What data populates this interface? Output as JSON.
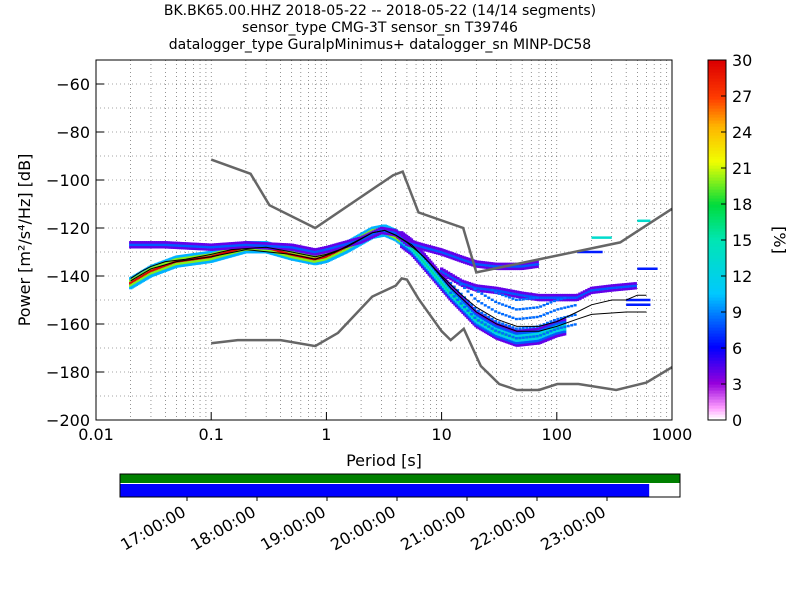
{
  "title": {
    "line1": "BK.BK65.00.HHZ   2018-05-22 -- 2018-05-22  (14/14 segments)",
    "line2": "sensor_type CMG-3T sensor_sn T39746",
    "line3": "datalogger_type GuralpMinimus+ datalogger_sn MINP-DC58"
  },
  "chart_data": {
    "type": "heatmap",
    "x_scale": "log",
    "xlabel": "Period [s]",
    "ylabel": "Power [m²/s⁴/Hz] [dB]",
    "xlim": [
      0.01,
      1000
    ],
    "ylim": [
      -200,
      -50
    ],
    "x_ticks": [
      "0.01",
      "0.1",
      "1",
      "10",
      "100",
      "1000"
    ],
    "y_ticks": [
      "−60",
      "−80",
      "−100",
      "−120",
      "−140",
      "−160",
      "−180",
      "−200"
    ],
    "grid": true,
    "colorbar": {
      "label": "[%]",
      "range": [
        0,
        30
      ],
      "ticks": [
        "0",
        "3",
        "6",
        "9",
        "12",
        "15",
        "18",
        "21",
        "24",
        "27",
        "30"
      ],
      "colormap": "pqlx"
    },
    "noise_models": [
      {
        "name": "high noise model",
        "color": "#666666",
        "points": [
          [
            0.1,
            -91.5
          ],
          [
            0.22,
            -97.4
          ],
          [
            0.32,
            -110.5
          ],
          [
            0.8,
            -120
          ],
          [
            3.8,
            -98
          ],
          [
            4.6,
            -96.5
          ],
          [
            6.3,
            -113.5
          ],
          [
            15.4,
            -120
          ],
          [
            20,
            -138.5
          ],
          [
            354.8,
            -126
          ],
          [
            1000,
            -112
          ]
        ]
      },
      {
        "name": "low noise model",
        "color": "#666666",
        "points": [
          [
            0.1,
            -168
          ],
          [
            0.17,
            -166.7
          ],
          [
            0.4,
            -166.7
          ],
          [
            0.8,
            -169.2
          ],
          [
            1.26,
            -163.7
          ],
          [
            2.5,
            -148.6
          ],
          [
            4.0,
            -144
          ],
          [
            4.5,
            -141
          ],
          [
            5.0,
            -141.5
          ],
          [
            6.3,
            -149.5
          ],
          [
            10,
            -163
          ],
          [
            12,
            -166.7
          ],
          [
            15.6,
            -162
          ],
          [
            21.9,
            -177.5
          ],
          [
            31.6,
            -185
          ],
          [
            45,
            -187.5
          ],
          [
            70,
            -187.5
          ],
          [
            101,
            -185
          ],
          [
            154,
            -185
          ],
          [
            328,
            -187.5
          ],
          [
            600,
            -184.4
          ],
          [
            1000,
            -178
          ]
        ]
      }
    ],
    "mean_curve": {
      "name": "mean",
      "color": "#000000",
      "points": [
        [
          0.02,
          -141
        ],
        [
          0.025,
          -138
        ],
        [
          0.03,
          -136
        ],
        [
          0.04,
          -134
        ],
        [
          0.06,
          -133
        ],
        [
          0.1,
          -131
        ],
        [
          0.15,
          -129
        ],
        [
          0.3,
          -128
        ],
        [
          0.5,
          -130
        ],
        [
          0.8,
          -132
        ],
        [
          1.0,
          -131
        ],
        [
          1.5,
          -128
        ],
        [
          2.5,
          -122
        ],
        [
          3.2,
          -121
        ],
        [
          4.0,
          -123
        ],
        [
          5.0,
          -126
        ],
        [
          7.0,
          -132
        ],
        [
          10,
          -140
        ],
        [
          15,
          -148
        ],
        [
          20,
          -153
        ],
        [
          30,
          -158
        ],
        [
          45,
          -161
        ],
        [
          70,
          -161
        ],
        [
          100,
          -159
        ],
        [
          150,
          -155
        ],
        [
          200,
          -152
        ],
        [
          300,
          -150
        ],
        [
          400,
          -150
        ],
        [
          500,
          -148
        ],
        [
          600,
          -148
        ]
      ]
    },
    "median_curve": {
      "name": "median",
      "color": "#000000",
      "points": [
        [
          0.02,
          -142
        ],
        [
          0.03,
          -137
        ],
        [
          0.05,
          -134
        ],
        [
          0.1,
          -132
        ],
        [
          0.2,
          -129
        ],
        [
          0.5,
          -131
        ],
        [
          0.8,
          -133
        ],
        [
          1.2,
          -130
        ],
        [
          2.5,
          -122
        ],
        [
          3.2,
          -121
        ],
        [
          4.0,
          -123
        ],
        [
          5.5,
          -127
        ],
        [
          8.0,
          -135
        ],
        [
          12,
          -145
        ],
        [
          20,
          -155
        ],
        [
          30,
          -160
        ],
        [
          45,
          -163
        ],
        [
          70,
          -163
        ],
        [
          100,
          -161
        ],
        [
          150,
          -158
        ],
        [
          200,
          -156
        ],
        [
          400,
          -155
        ],
        [
          600,
          -155
        ]
      ]
    },
    "mode_curve": {
      "name": "mode",
      "points": [
        [
          0.02,
          -143
        ],
        [
          0.03,
          -138
        ],
        [
          0.05,
          -134
        ],
        [
          0.1,
          -132
        ],
        [
          0.2,
          -128
        ],
        [
          0.3,
          -128
        ],
        [
          0.5,
          -131
        ],
        [
          0.8,
          -133
        ],
        [
          1.0,
          -132
        ],
        [
          1.5,
          -128
        ],
        [
          2.5,
          -122
        ],
        [
          3.2,
          -121
        ],
        [
          4.0,
          -123
        ],
        [
          5.5,
          -128
        ],
        [
          8.0,
          -137
        ],
        [
          12,
          -147
        ],
        [
          20,
          -158
        ],
        [
          30,
          -163
        ],
        [
          45,
          -166
        ],
        [
          70,
          -165
        ],
        [
          100,
          -162
        ],
        [
          150,
          -160
        ],
        [
          200,
          -159
        ],
        [
          400,
          -158
        ]
      ]
    },
    "upper_branch": {
      "points": [
        [
          0.02,
          -127
        ],
        [
          0.04,
          -127
        ],
        [
          0.1,
          -128
        ],
        [
          0.2,
          -127
        ],
        [
          0.5,
          -128
        ],
        [
          0.8,
          -130
        ],
        [
          1.0,
          -129
        ],
        [
          2.0,
          -125
        ],
        [
          3.0,
          -121
        ],
        [
          4.0,
          -122
        ],
        [
          5.0,
          -126
        ],
        [
          7,
          -128
        ],
        [
          10,
          -130
        ],
        [
          15,
          -133
        ],
        [
          20,
          -135
        ],
        [
          30,
          -136
        ],
        [
          50,
          -136
        ],
        [
          70,
          -135
        ]
      ]
    },
    "lower_branch": {
      "points": [
        [
          10,
          -138
        ],
        [
          15,
          -143
        ],
        [
          20,
          -145
        ],
        [
          30,
          -146
        ],
        [
          50,
          -148
        ],
        [
          70,
          -149
        ],
        [
          100,
          -149
        ],
        [
          150,
          -149
        ],
        [
          200,
          -146
        ],
        [
          300,
          -145
        ],
        [
          500,
          -144
        ]
      ]
    },
    "right_segments": [
      {
        "x": [
          150,
          250
        ],
        "y": -130
      },
      {
        "x": [
          200,
          300
        ],
        "y": -124
      },
      {
        "x": [
          500,
          750
        ],
        "y": -137
      },
      {
        "x": [
          500,
          650
        ],
        "y": -117
      },
      {
        "x": [
          400,
          650
        ],
        "y": -152
      },
      {
        "x": [
          400,
          650
        ],
        "y": -150
      }
    ],
    "timeline": {
      "labels": [
        "17:00:00",
        "18:00:00",
        "19:00:00",
        "20:00:00",
        "21:00:00",
        "22:00:00",
        "23:00:00"
      ],
      "coverage_fraction_green": 1.0,
      "coverage_fraction_blue": 0.945,
      "green_color": "#008000",
      "blue_color": "#0000ff"
    }
  }
}
